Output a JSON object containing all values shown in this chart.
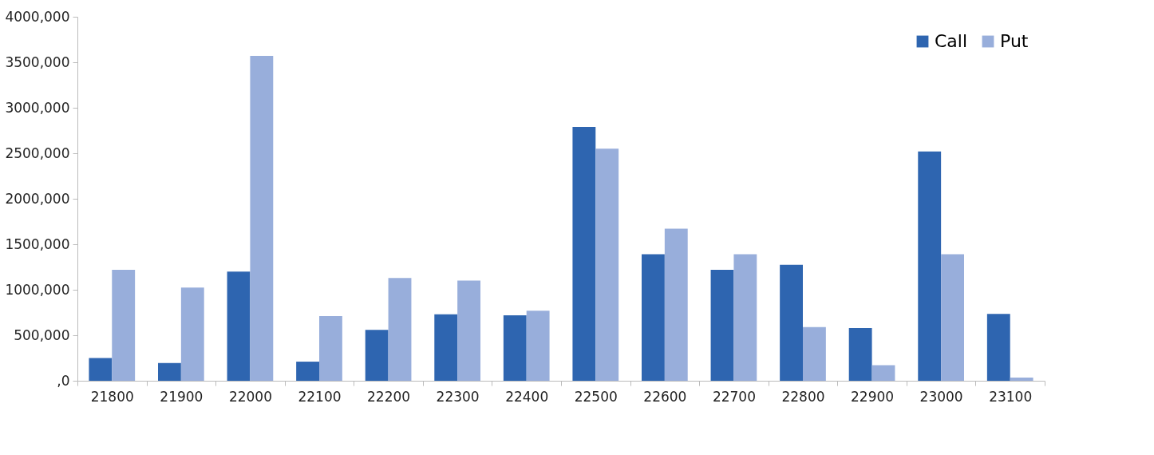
{
  "chart_data": {
    "type": "bar",
    "categories": [
      "21800",
      "21900",
      "22000",
      "22100",
      "22200",
      "22300",
      "22400",
      "22500",
      "22600",
      "22700",
      "22800",
      "22900",
      "23000",
      "23100"
    ],
    "series": [
      {
        "name": "Call",
        "color": "#2e65b0",
        "values": [
          250000,
          195000,
          1200000,
          210000,
          560000,
          730000,
          720000,
          2790000,
          1390000,
          1220000,
          1275000,
          580000,
          2520000,
          735000
        ]
      },
      {
        "name": "Put",
        "color": "#98aedb",
        "values": [
          1220000,
          1025000,
          3570000,
          710000,
          1130000,
          1100000,
          770000,
          2550000,
          1670000,
          1390000,
          590000,
          170000,
          1390000,
          35000
        ]
      }
    ],
    "ylim": [
      0,
      4000000
    ],
    "yticks": [
      {
        "value": 0,
        "label": ",0"
      },
      {
        "value": 500000,
        "label": "500,000"
      },
      {
        "value": 1000000,
        "label": "1000,000"
      },
      {
        "value": 1500000,
        "label": "1500,000"
      },
      {
        "value": 2000000,
        "label": "2000,000"
      },
      {
        "value": 2500000,
        "label": "2500,000"
      },
      {
        "value": 3000000,
        "label": "3000,000"
      },
      {
        "value": 3500000,
        "label": "3500,000"
      },
      {
        "value": 4000000,
        "label": "4000,000"
      }
    ],
    "grid": false,
    "legend": "top right"
  }
}
